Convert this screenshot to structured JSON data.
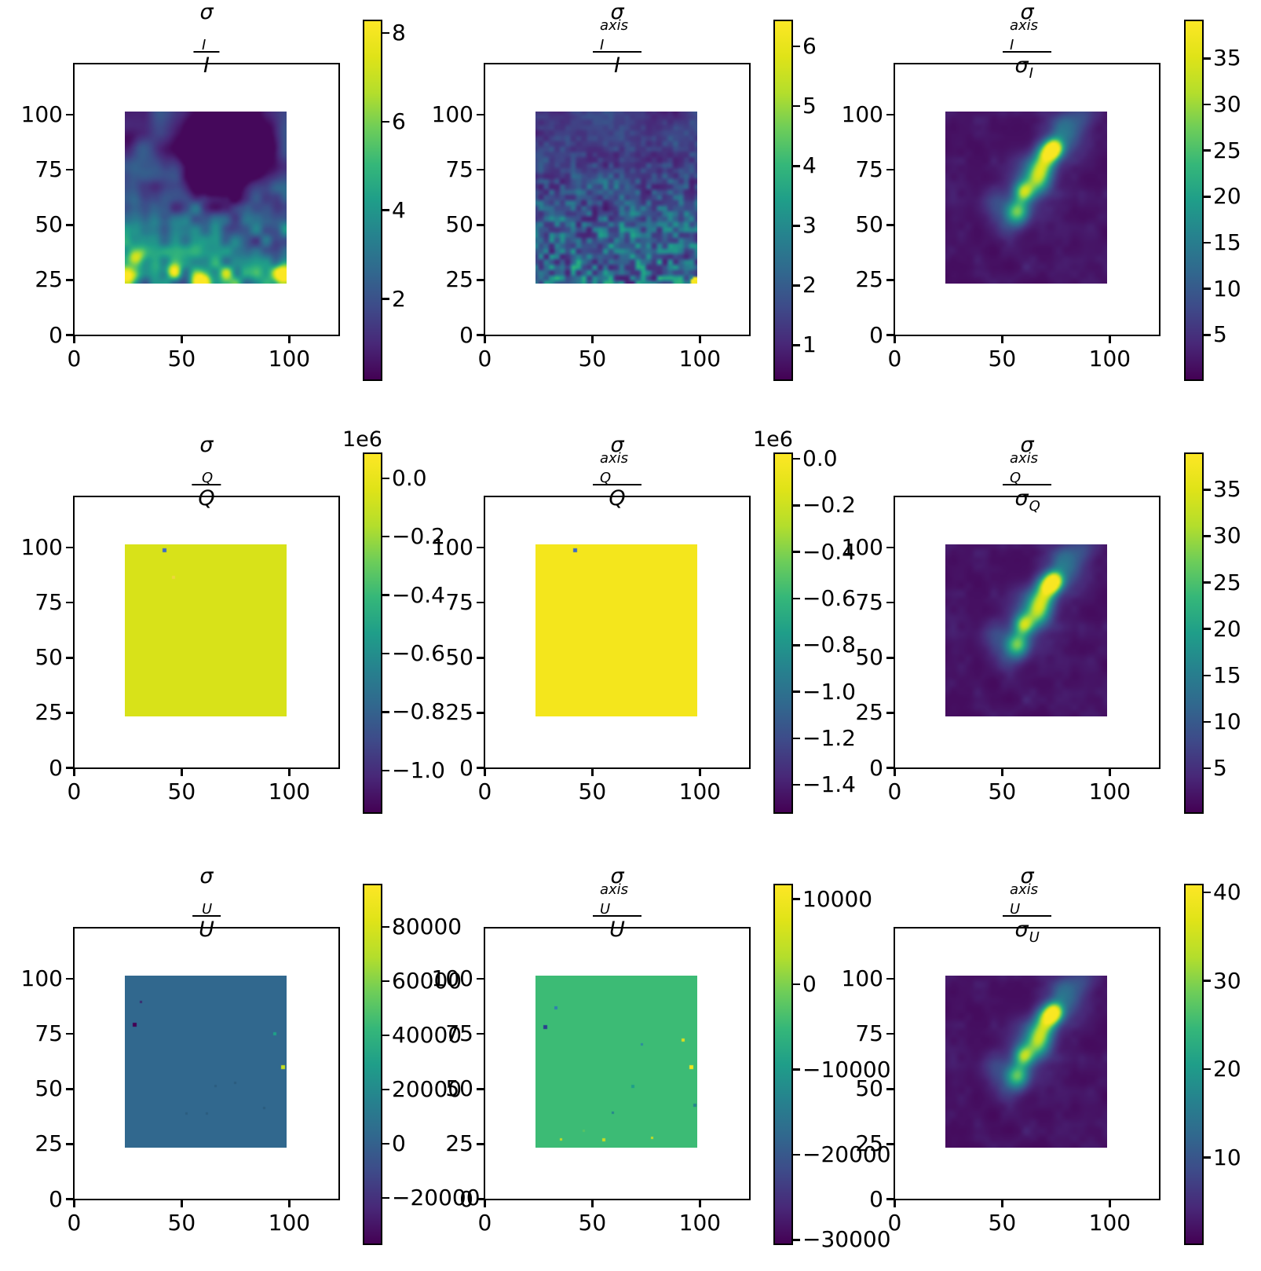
{
  "chart_data": {
    "type": "heatmap",
    "layout": "3x3 grid of matplotlib-style imshow panels, each with its own viridis colorbar on the right",
    "colormap": "viridis",
    "colormap_hex": {
      "low": "#440154",
      "mid": "#21918c",
      "high": "#fde725"
    },
    "axis": {
      "xlim": [
        -0.5,
        123.5
      ],
      "ylim": [
        -0.5,
        123.5
      ],
      "x_ticks": [
        0,
        50,
        100
      ],
      "y_ticks": [
        0,
        25,
        50,
        75,
        100
      ],
      "x_tick_labels": [
        "0",
        "50",
        "100"
      ],
      "y_tick_labels": [
        "0",
        "25",
        "50",
        "75",
        "100"
      ],
      "image_extent_x": [
        23.5,
        98.5
      ],
      "image_extent_y": [
        23.5,
        101.5
      ]
    },
    "filament_blobs": [
      {
        "x": 0.447,
        "y": 0.583,
        "a": 24,
        "s": 0.05
      },
      {
        "x": 0.487,
        "y": 0.468,
        "a": 25,
        "s": 0.042
      },
      {
        "x": 0.567,
        "y": 0.404,
        "a": 15,
        "s": 0.05
      },
      {
        "x": 0.593,
        "y": 0.327,
        "a": 19,
        "s": 0.048
      },
      {
        "x": 0.633,
        "y": 0.25,
        "a": 28,
        "s": 0.044
      },
      {
        "x": 0.673,
        "y": 0.212,
        "a": 33,
        "s": 0.038
      },
      {
        "x": 0.54,
        "y": 0.378,
        "a": 10,
        "s": 0.09
      },
      {
        "x": 0.727,
        "y": 0.083,
        "a": 7,
        "s": 0.06
      },
      {
        "x": 0.833,
        "y": 0.032,
        "a": 6,
        "s": 0.06
      },
      {
        "x": 0.753,
        "y": 0.173,
        "a": 8,
        "s": 0.07
      },
      {
        "x": 0.327,
        "y": 0.532,
        "a": 5,
        "s": 0.07
      },
      {
        "x": 0.38,
        "y": 0.66,
        "a": 4,
        "s": 0.06
      }
    ],
    "panels": [
      {
        "id": "sigma-i-over-i",
        "row": 0,
        "col": 0,
        "title": {
          "num_base": "σ",
          "num_sub": "I",
          "num_sup": "",
          "den_base": "I",
          "den_sub": ""
        },
        "colorbar": {
          "offset": "",
          "vmin": 0.15,
          "vmax": 8.3,
          "ticks": [
            {
              "v": 8,
              "label": "8"
            },
            {
              "v": 6,
              "label": "6"
            },
            {
              "v": 4,
              "label": "4"
            },
            {
              "v": 2,
              "label": "2"
            }
          ]
        },
        "heatmap": {
          "kind": "smooth_field",
          "seed": 7,
          "description": "smooth noisy field, dark purple blob upper-centre, teal/green mottling increasing toward bottom, yellow specks along bottom edge",
          "dark_blobs": [
            {
              "x": 0.6,
              "y": 0.16,
              "a": -2.3,
              "s": 0.2
            },
            {
              "x": 0.52,
              "y": 0.36,
              "a": -2.0,
              "s": 0.13
            },
            {
              "x": 0.68,
              "y": 0.28,
              "a": -1.9,
              "s": 0.16
            },
            {
              "x": 0.905,
              "y": 0.78,
              "a": -1.2,
              "s": 0.06
            },
            {
              "x": 0.02,
              "y": 0.17,
              "a": -1.0,
              "s": 0.05
            }
          ],
          "bright_spots": [
            {
              "x": 0.47,
              "y": 0.99,
              "a": 6.0,
              "s": 0.035
            },
            {
              "x": 0.99,
              "y": 0.95,
              "a": 7.5,
              "s": 0.04
            },
            {
              "x": 0.02,
              "y": 0.97,
              "a": 4.5,
              "s": 0.04
            },
            {
              "x": 0.07,
              "y": 0.84,
              "a": 3.5,
              "s": 0.035
            },
            {
              "x": 0.3,
              "y": 0.93,
              "a": 3.2,
              "s": 0.03
            },
            {
              "x": 0.63,
              "y": 0.94,
              "a": 3.5,
              "s": 0.03
            }
          ]
        }
      },
      {
        "id": "sigma-i-axis-over-i",
        "row": 0,
        "col": 1,
        "title": {
          "num_base": "σ",
          "num_sub": "I",
          "num_sup": "axis",
          "den_base": "I",
          "den_sub": ""
        },
        "colorbar": {
          "offset": "",
          "vmin": 0.4,
          "vmax": 6.45,
          "ticks": [
            {
              "v": 6,
              "label": "6"
            },
            {
              "v": 5,
              "label": "5"
            },
            {
              "v": 4,
              "label": "4"
            },
            {
              "v": 3,
              "label": "3"
            },
            {
              "v": 2,
              "label": "2"
            },
            {
              "v": 1,
              "label": "1"
            }
          ]
        },
        "heatmap": {
          "kind": "fine_noise",
          "seed": 23,
          "description": "fine-grained purple/teal speckle noise, brighter green speckles toward bottom, single yellow pixel at bottom-right corner",
          "corner_spot": {
            "x": 0.99,
            "y": 0.985,
            "v": 6.3,
            "s": 0.025
          }
        }
      },
      {
        "id": "sigma-i-axis-over-sigma-i",
        "row": 0,
        "col": 2,
        "title": {
          "num_base": "σ",
          "num_sub": "I",
          "num_sup": "axis",
          "den_base": "σ",
          "den_sub": "I"
        },
        "colorbar": {
          "offset": "",
          "vmin": 0.0,
          "vmax": 39.2,
          "ticks": [
            {
              "v": 35,
              "label": "35"
            },
            {
              "v": 30,
              "label": "30"
            },
            {
              "v": 25,
              "label": "25"
            },
            {
              "v": 20,
              "label": "20"
            },
            {
              "v": 15,
              "label": "15"
            },
            {
              "v": 10,
              "label": "10"
            },
            {
              "v": 5,
              "label": "5"
            }
          ]
        },
        "heatmap": {
          "kind": "filament",
          "seed": 41,
          "description": "dark purple background with bright green/yellow diagonal filament of knots running from (55,55) to (75,85) in data coordinates"
        }
      },
      {
        "id": "sigma-q-over-q",
        "row": 1,
        "col": 0,
        "title": {
          "num_base": "σ",
          "num_sub": "Q",
          "num_sup": "",
          "den_base": "Q",
          "den_sub": ""
        },
        "colorbar": {
          "offset": "1e6",
          "vmin": -1.148,
          "vmax": 0.088,
          "ticks": [
            {
              "v": 0.0,
              "label": "0.0"
            },
            {
              "v": -0.2,
              "label": "−0.2"
            },
            {
              "v": -0.4,
              "label": "−0.4"
            },
            {
              "v": -0.6,
              "label": "−0.6"
            },
            {
              "v": -0.8,
              "label": "−0.8"
            },
            {
              "v": -1.0,
              "label": "−1.0"
            }
          ]
        },
        "heatmap": {
          "kind": "uniform",
          "fill": "#d8e219",
          "description": "uniform yellow-green square (values ~0 on a 0 to −1.1e6 scale) with one blue outlier pixel near (42,98) and one orange pixel near (46,86)",
          "dots": [
            {
              "x": 0.247,
              "y": 0.036,
              "c": "#3d6ac4",
              "s": 5
            },
            {
              "x": 0.3,
              "y": 0.19,
              "c": "#edd83c",
              "s": 4
            }
          ]
        }
      },
      {
        "id": "sigma-q-axis-over-q",
        "row": 1,
        "col": 1,
        "title": {
          "num_base": "σ",
          "num_sub": "Q",
          "num_sup": "axis",
          "den_base": "Q",
          "den_sub": ""
        },
        "colorbar": {
          "offset": "1e6",
          "vmin": -1.524,
          "vmax": 0.027,
          "ticks": [
            {
              "v": 0.0,
              "label": "0.0"
            },
            {
              "v": -0.2,
              "label": "−0.2"
            },
            {
              "v": -0.4,
              "label": "−0.4"
            },
            {
              "v": -0.6,
              "label": "−0.6"
            },
            {
              "v": -0.8,
              "label": "−0.8"
            },
            {
              "v": -1.0,
              "label": "−1.0"
            },
            {
              "v": -1.2,
              "label": "−1.2"
            },
            {
              "v": -1.4,
              "label": "−1.4"
            }
          ]
        },
        "heatmap": {
          "kind": "uniform",
          "fill": "#f4e61c",
          "description": "uniform bright yellow square (values ~0 on a 0 to −1.5e6 scale) with one blue outlier pixel near (42,98)",
          "dots": [
            {
              "x": 0.247,
              "y": 0.036,
              "c": "#3d6ac4",
              "s": 5
            }
          ]
        }
      },
      {
        "id": "sigma-q-axis-over-sigma-q",
        "row": 1,
        "col": 2,
        "title": {
          "num_base": "σ",
          "num_sub": "Q",
          "num_sup": "axis",
          "den_base": "σ",
          "den_sub": "Q"
        },
        "colorbar": {
          "offset": "",
          "vmin": 0.1,
          "vmax": 39.0,
          "ticks": [
            {
              "v": 35,
              "label": "35"
            },
            {
              "v": 30,
              "label": "30"
            },
            {
              "v": 25,
              "label": "25"
            },
            {
              "v": 20,
              "label": "20"
            },
            {
              "v": 15,
              "label": "15"
            },
            {
              "v": 10,
              "label": "10"
            },
            {
              "v": 5,
              "label": "5"
            }
          ]
        },
        "heatmap": {
          "kind": "filament",
          "seed": 41,
          "description": "same dark purple field with bright diagonal filament of knots as the I-ratio panel"
        }
      },
      {
        "id": "sigma-u-over-u",
        "row": 2,
        "col": 0,
        "title": {
          "num_base": "σ",
          "num_sub": "U",
          "num_sup": "",
          "den_base": "U",
          "den_sub": ""
        },
        "colorbar": {
          "offset": "",
          "vmin": -37400,
          "vmax": 96000,
          "ticks": [
            {
              "v": 80000,
              "label": "80000"
            },
            {
              "v": 60000,
              "label": "60000"
            },
            {
              "v": 40000,
              "label": "40000"
            },
            {
              "v": 20000,
              "label": "20000"
            },
            {
              "v": 0,
              "label": "0"
            },
            {
              "v": -20000,
              "label": "−20000"
            }
          ]
        },
        "heatmap": {
          "kind": "uniform",
          "fill": "#31688e",
          "description": "uniform steel-blue square (values ~0) with sparse outliers: dark purple pixel near (28,79), green pixel near (93,75), yellow pixel near (97,60), few faint dark dots",
          "dots": [
            {
              "x": 0.06,
              "y": 0.285,
              "c": "#440154",
              "s": 5
            },
            {
              "x": 0.925,
              "y": 0.34,
              "c": "#1fa187",
              "s": 4
            },
            {
              "x": 0.98,
              "y": 0.53,
              "c": "#c8e020",
              "s": 5
            },
            {
              "x": 0.56,
              "y": 0.64,
              "c": "#2b5c7f",
              "s": 3
            },
            {
              "x": 0.68,
              "y": 0.625,
              "c": "#2b5c7f",
              "s": 3
            },
            {
              "x": 0.38,
              "y": 0.8,
              "c": "#2b5c7f",
              "s": 3
            },
            {
              "x": 0.86,
              "y": 0.77,
              "c": "#2b5c7f",
              "s": 3
            },
            {
              "x": 0.1,
              "y": 0.155,
              "c": "#3a2a70",
              "s": 3
            },
            {
              "x": 0.505,
              "y": 0.8,
              "c": "#2b5c7f",
              "s": 3
            }
          ]
        }
      },
      {
        "id": "sigma-u-axis-over-u",
        "row": 2,
        "col": 1,
        "title": {
          "num_base": "σ",
          "num_sub": "U",
          "num_sup": "axis",
          "den_base": "U",
          "den_sub": ""
        },
        "colorbar": {
          "offset": "",
          "vmin": -30600,
          "vmax": 11800,
          "ticks": [
            {
              "v": 10000,
              "label": "10000"
            },
            {
              "v": 0,
              "label": "0"
            },
            {
              "v": -10000,
              "label": "−10000"
            },
            {
              "v": -20000,
              "label": "−20000"
            },
            {
              "v": -30000,
              "label": "−30000"
            }
          ]
        },
        "heatmap": {
          "kind": "uniform",
          "fill": "#3cbb75",
          "description": "uniform medium-green square (values ~0) with sparse outliers: navy pixel near (28,78), yellow pixels near (92,72) and (96,60), several small teal and yellow dots",
          "dots": [
            {
              "x": 0.06,
              "y": 0.3,
              "c": "#2b3e90",
              "s": 5
            },
            {
              "x": 0.125,
              "y": 0.185,
              "c": "#2e7fb0",
              "s": 4
            },
            {
              "x": 0.915,
              "y": 0.375,
              "c": "#dade20",
              "s": 4
            },
            {
              "x": 0.965,
              "y": 0.53,
              "c": "#f4e61c",
              "s": 5
            },
            {
              "x": 0.6,
              "y": 0.645,
              "c": "#1f9e89",
              "s": 4
            },
            {
              "x": 0.985,
              "y": 0.755,
              "c": "#25858e",
              "s": 4
            },
            {
              "x": 0.42,
              "y": 0.955,
              "c": "#c8dd24",
              "s": 4
            },
            {
              "x": 0.16,
              "y": 0.95,
              "c": "#c8dd24",
              "s": 3
            },
            {
              "x": 0.72,
              "y": 0.945,
              "c": "#c8dd24",
              "s": 3
            },
            {
              "x": 0.3,
              "y": 0.9,
              "c": "#57c264",
              "s": 3
            },
            {
              "x": 0.48,
              "y": 0.795,
              "c": "#25858e",
              "s": 3
            },
            {
              "x": 0.66,
              "y": 0.4,
              "c": "#2d8aa0",
              "s": 3
            }
          ]
        }
      },
      {
        "id": "sigma-u-axis-over-sigma-u",
        "row": 2,
        "col": 2,
        "title": {
          "num_base": "σ",
          "num_sub": "U",
          "num_sup": "axis",
          "den_base": "σ",
          "den_sub": "U"
        },
        "colorbar": {
          "offset": "",
          "vmin": 0.1,
          "vmax": 41.0,
          "ticks": [
            {
              "v": 40,
              "label": "40"
            },
            {
              "v": 30,
              "label": "30"
            },
            {
              "v": 20,
              "label": "20"
            },
            {
              "v": 10,
              "label": "10"
            }
          ]
        },
        "heatmap": {
          "kind": "filament",
          "seed": 41,
          "description": "same dark purple field with bright diagonal filament of knots as the I- and Q-ratio panels"
        }
      }
    ]
  }
}
